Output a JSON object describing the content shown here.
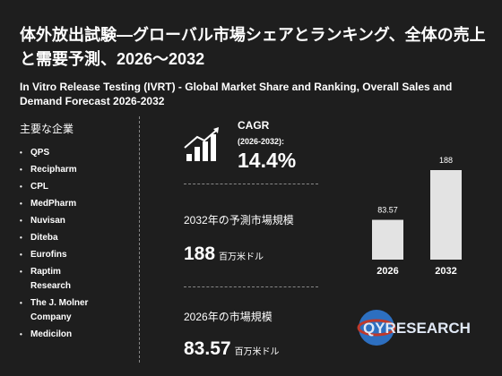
{
  "title": "体外放出試験—グローバル市場シェアとランキング、全体の売上と需要予測、2026～2032",
  "subtitle": "In Vitro Release Testing (IVRT) - Global Market Share and Ranking, Overall Sales and Demand Forecast 2026-2032",
  "companies_heading": "主要な企業",
  "companies": [
    "QPS",
    "Recipharm",
    "CPL",
    "MedPharm",
    "Nuvisan",
    "Diteba",
    "Eurofins",
    "Raptim Research",
    "The J. Molner Company",
    "Medicilon"
  ],
  "cagr": {
    "label": "CAGR",
    "period": "(2026-2032):",
    "value": "14.4%"
  },
  "forecast": {
    "label": "2032年の予測市場規模",
    "value": 188,
    "unit": "百万米ドル"
  },
  "current": {
    "label": "2026年の市場規模",
    "value": 83.57,
    "unit": "百万米ドル"
  },
  "chart": {
    "categories": [
      "2026",
      "2032"
    ],
    "values": [
      83.57,
      188
    ],
    "color": "#e3e3e3"
  },
  "logo": "QYRESEARCH"
}
